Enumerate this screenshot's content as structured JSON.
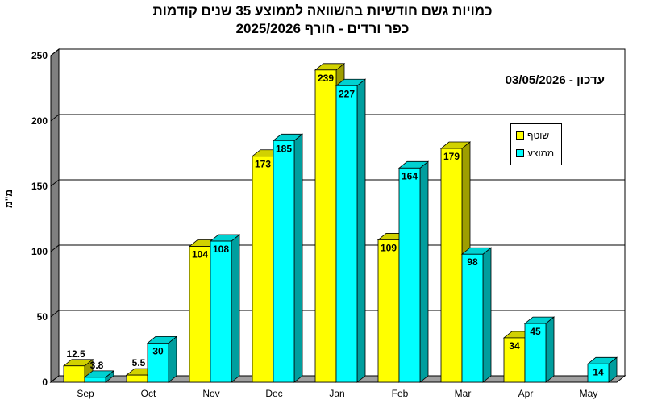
{
  "chart_data": {
    "type": "bar",
    "title": "כמויות גשם חודשיות בהשוואה לממוצע 35 שנים קודמות",
    "subtitle": "כפר ורדים - חורף 2025/2026",
    "ylabel": "מ\"מ",
    "xlabel": "",
    "ylim": [
      0,
      250
    ],
    "yticks": [
      0,
      50,
      100,
      150,
      200,
      250
    ],
    "grid": true,
    "legend_position": "right",
    "categories": [
      "Sep",
      "Oct",
      "Nov",
      "Dec",
      "Jan",
      "Feb",
      "Mar",
      "Apr",
      "May"
    ],
    "series": [
      {
        "name": "שוטף",
        "color": "#ffff00",
        "values": [
          12.5,
          5.5,
          104,
          173,
          239,
          109,
          179,
          34,
          0
        ],
        "labels": [
          "12.5",
          "5.5",
          "104",
          "173",
          "239",
          "109",
          "179",
          "34",
          ""
        ]
      },
      {
        "name": "ממוצע",
        "color": "#00ffff",
        "values": [
          3.8,
          30,
          108,
          185,
          227,
          164,
          98,
          45,
          14
        ],
        "labels": [
          "3.8",
          "30",
          "108",
          "185",
          "227",
          "164",
          "98",
          "45",
          "14"
        ]
      }
    ],
    "annotation": "עדכון - 03/05/2026"
  }
}
